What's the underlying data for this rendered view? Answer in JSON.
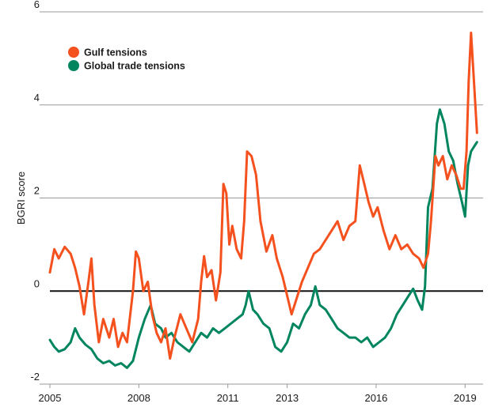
{
  "chart_data": {
    "type": "line",
    "title": "",
    "xlabel": "",
    "ylabel": "BGRI score",
    "xlim": [
      2005,
      2019.5
    ],
    "ylim": [
      -2,
      6
    ],
    "x_ticks": [
      2005,
      2008,
      2011,
      2013,
      2016,
      2019
    ],
    "y_ticks": [
      -2,
      0,
      2,
      4,
      6
    ],
    "grid": "horizontal",
    "legend": "top-left",
    "series": [
      {
        "name": "Gulf tensions",
        "color": "#f4511e",
        "points": [
          [
            2005.0,
            0.4
          ],
          [
            2005.15,
            0.9
          ],
          [
            2005.3,
            0.7
          ],
          [
            2005.5,
            0.95
          ],
          [
            2005.7,
            0.8
          ],
          [
            2005.85,
            0.5
          ],
          [
            2006.0,
            0.1
          ],
          [
            2006.15,
            -0.5
          ],
          [
            2006.3,
            0.2
          ],
          [
            2006.4,
            0.7
          ],
          [
            2006.5,
            -0.3
          ],
          [
            2006.65,
            -1.1
          ],
          [
            2006.8,
            -0.6
          ],
          [
            2007.0,
            -1.0
          ],
          [
            2007.15,
            -0.6
          ],
          [
            2007.3,
            -1.2
          ],
          [
            2007.45,
            -0.9
          ],
          [
            2007.6,
            -1.1
          ],
          [
            2007.8,
            0.0
          ],
          [
            2007.9,
            0.85
          ],
          [
            2008.0,
            0.7
          ],
          [
            2008.15,
            0.0
          ],
          [
            2008.3,
            0.2
          ],
          [
            2008.45,
            -0.5
          ],
          [
            2008.6,
            -0.9
          ],
          [
            2008.75,
            -1.1
          ],
          [
            2008.9,
            -0.8
          ],
          [
            2009.05,
            -1.45
          ],
          [
            2009.2,
            -1.0
          ],
          [
            2009.4,
            -0.5
          ],
          [
            2009.6,
            -0.8
          ],
          [
            2009.8,
            -1.1
          ],
          [
            2010.0,
            -0.6
          ],
          [
            2010.1,
            0.2
          ],
          [
            2010.2,
            0.75
          ],
          [
            2010.3,
            0.3
          ],
          [
            2010.45,
            0.45
          ],
          [
            2010.6,
            -0.2
          ],
          [
            2010.75,
            0.4
          ],
          [
            2010.85,
            2.3
          ],
          [
            2010.95,
            2.1
          ],
          [
            2011.05,
            1.0
          ],
          [
            2011.15,
            1.4
          ],
          [
            2011.3,
            0.9
          ],
          [
            2011.45,
            0.7
          ],
          [
            2011.55,
            1.5
          ],
          [
            2011.65,
            3.0
          ],
          [
            2011.8,
            2.9
          ],
          [
            2011.95,
            2.5
          ],
          [
            2012.1,
            1.5
          ],
          [
            2012.3,
            0.85
          ],
          [
            2012.5,
            1.2
          ],
          [
            2012.65,
            0.7
          ],
          [
            2012.85,
            0.3
          ],
          [
            2013.0,
            -0.1
          ],
          [
            2013.15,
            -0.5
          ],
          [
            2013.3,
            -0.2
          ],
          [
            2013.5,
            0.2
          ],
          [
            2013.7,
            0.5
          ],
          [
            2013.9,
            0.8
          ],
          [
            2014.1,
            0.9
          ],
          [
            2014.3,
            1.1
          ],
          [
            2014.5,
            1.3
          ],
          [
            2014.7,
            1.5
          ],
          [
            2014.9,
            1.1
          ],
          [
            2015.1,
            1.4
          ],
          [
            2015.3,
            1.5
          ],
          [
            2015.45,
            2.7
          ],
          [
            2015.6,
            2.3
          ],
          [
            2015.75,
            1.9
          ],
          [
            2015.9,
            1.6
          ],
          [
            2016.05,
            1.8
          ],
          [
            2016.25,
            1.3
          ],
          [
            2016.45,
            0.9
          ],
          [
            2016.65,
            1.2
          ],
          [
            2016.85,
            0.9
          ],
          [
            2017.05,
            1.0
          ],
          [
            2017.25,
            0.8
          ],
          [
            2017.45,
            0.7
          ],
          [
            2017.6,
            0.5
          ],
          [
            2017.75,
            0.8
          ],
          [
            2017.85,
            1.5
          ],
          [
            2018.0,
            2.9
          ],
          [
            2018.1,
            2.7
          ],
          [
            2018.25,
            2.9
          ],
          [
            2018.4,
            2.4
          ],
          [
            2018.55,
            2.7
          ],
          [
            2018.7,
            2.5
          ],
          [
            2018.85,
            2.2
          ],
          [
            2018.95,
            2.2
          ],
          [
            2019.05,
            3.0
          ],
          [
            2019.12,
            4.5
          ],
          [
            2019.2,
            5.55
          ],
          [
            2019.3,
            4.5
          ],
          [
            2019.4,
            3.4
          ]
        ]
      },
      {
        "name": "Global trade tensions",
        "color": "#00855f",
        "points": [
          [
            2005.0,
            -1.05
          ],
          [
            2005.15,
            -1.2
          ],
          [
            2005.3,
            -1.3
          ],
          [
            2005.5,
            -1.25
          ],
          [
            2005.7,
            -1.1
          ],
          [
            2005.85,
            -0.8
          ],
          [
            2006.0,
            -1.0
          ],
          [
            2006.2,
            -1.15
          ],
          [
            2006.4,
            -1.25
          ],
          [
            2006.6,
            -1.45
          ],
          [
            2006.8,
            -1.55
          ],
          [
            2007.0,
            -1.5
          ],
          [
            2007.2,
            -1.6
          ],
          [
            2007.4,
            -1.55
          ],
          [
            2007.6,
            -1.65
          ],
          [
            2007.8,
            -1.5
          ],
          [
            2008.0,
            -1.0
          ],
          [
            2008.2,
            -0.6
          ],
          [
            2008.4,
            -0.3
          ],
          [
            2008.55,
            -0.7
          ],
          [
            2008.75,
            -0.8
          ],
          [
            2008.9,
            -1.0
          ],
          [
            2009.1,
            -0.9
          ],
          [
            2009.3,
            -1.1
          ],
          [
            2009.5,
            -1.2
          ],
          [
            2009.7,
            -1.3
          ],
          [
            2009.9,
            -1.1
          ],
          [
            2010.1,
            -0.9
          ],
          [
            2010.3,
            -1.0
          ],
          [
            2010.5,
            -0.8
          ],
          [
            2010.7,
            -0.9
          ],
          [
            2010.9,
            -0.8
          ],
          [
            2011.1,
            -0.7
          ],
          [
            2011.3,
            -0.6
          ],
          [
            2011.5,
            -0.5
          ],
          [
            2011.6,
            -0.3
          ],
          [
            2011.7,
            0.0
          ],
          [
            2011.85,
            -0.4
          ],
          [
            2012.0,
            -0.5
          ],
          [
            2012.2,
            -0.7
          ],
          [
            2012.4,
            -0.8
          ],
          [
            2012.6,
            -1.2
          ],
          [
            2012.8,
            -1.3
          ],
          [
            2013.0,
            -1.1
          ],
          [
            2013.2,
            -0.7
          ],
          [
            2013.4,
            -0.8
          ],
          [
            2013.6,
            -0.5
          ],
          [
            2013.8,
            -0.3
          ],
          [
            2013.95,
            0.1
          ],
          [
            2014.1,
            -0.3
          ],
          [
            2014.3,
            -0.4
          ],
          [
            2014.5,
            -0.6
          ],
          [
            2014.7,
            -0.8
          ],
          [
            2014.9,
            -0.9
          ],
          [
            2015.1,
            -1.0
          ],
          [
            2015.3,
            -1.0
          ],
          [
            2015.5,
            -1.1
          ],
          [
            2015.7,
            -1.0
          ],
          [
            2015.9,
            -1.2
          ],
          [
            2016.1,
            -1.1
          ],
          [
            2016.3,
            -1.0
          ],
          [
            2016.5,
            -0.8
          ],
          [
            2016.7,
            -0.5
          ],
          [
            2016.9,
            -0.3
          ],
          [
            2017.1,
            -0.1
          ],
          [
            2017.25,
            0.05
          ],
          [
            2017.4,
            -0.2
          ],
          [
            2017.55,
            -0.4
          ],
          [
            2017.65,
            0.1
          ],
          [
            2017.75,
            1.8
          ],
          [
            2017.9,
            2.2
          ],
          [
            2018.05,
            3.6
          ],
          [
            2018.15,
            3.9
          ],
          [
            2018.3,
            3.6
          ],
          [
            2018.45,
            3.0
          ],
          [
            2018.6,
            2.8
          ],
          [
            2018.75,
            2.3
          ],
          [
            2018.9,
            1.9
          ],
          [
            2019.0,
            1.6
          ],
          [
            2019.1,
            2.7
          ],
          [
            2019.2,
            3.0
          ],
          [
            2019.3,
            3.1
          ],
          [
            2019.4,
            3.2
          ]
        ]
      }
    ]
  }
}
